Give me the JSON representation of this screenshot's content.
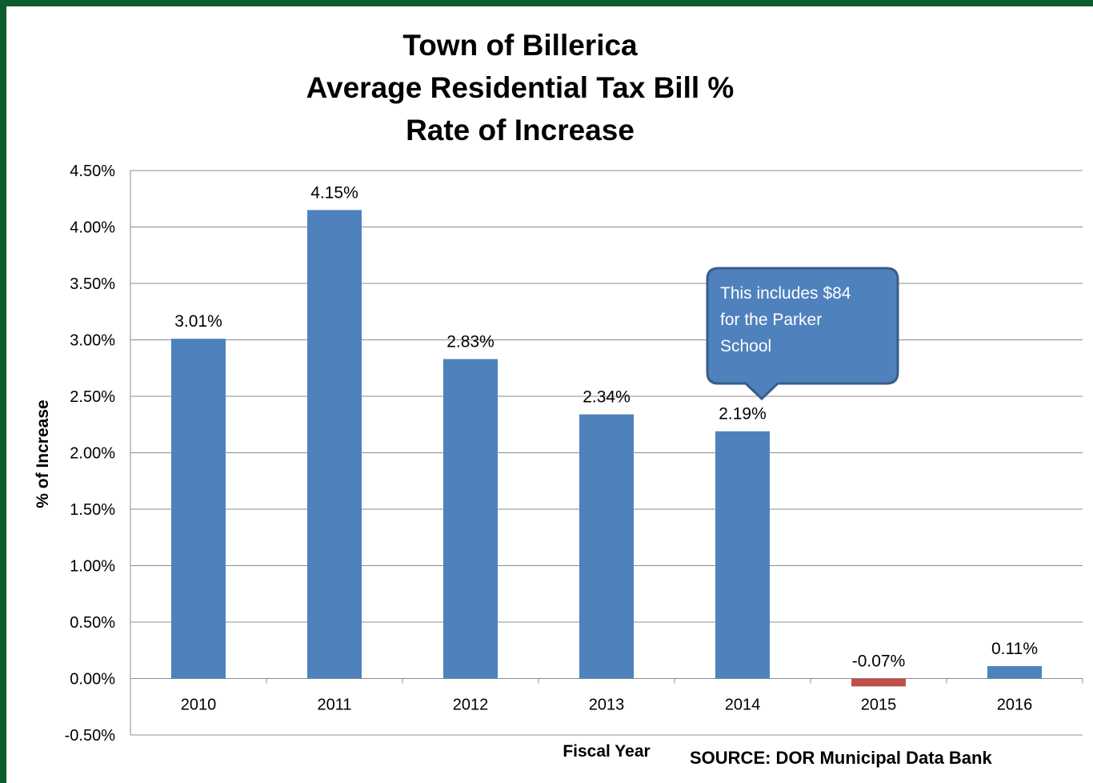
{
  "colors": {
    "bar_positive": "#4f81bd",
    "bar_negative": "#c0504d",
    "callout_fill": "#4f81bd",
    "callout_border": "#385d8a",
    "gridline": "#8c8c8c",
    "frame": "#0d5a2e"
  },
  "chart_data": {
    "type": "bar",
    "title_lines": [
      "Town of Billerica",
      "Average Residential Tax Bill %",
      "Rate of Increase"
    ],
    "xlabel": "Fiscal Year",
    "ylabel": "% of Increase",
    "categories": [
      "2010",
      "2011",
      "2012",
      "2013",
      "2014",
      "2015",
      "2016"
    ],
    "values": [
      3.01,
      4.15,
      2.83,
      2.34,
      2.19,
      -0.07,
      0.11
    ],
    "value_labels": [
      "3.01%",
      "4.15%",
      "2.83%",
      "2.34%",
      "2.19%",
      "-0.07%",
      "0.11%"
    ],
    "ylim": [
      -0.5,
      4.5
    ],
    "yticks": [
      4.5,
      4.0,
      3.5,
      3.0,
      2.5,
      2.0,
      1.5,
      1.0,
      0.5,
      0.0,
      -0.5
    ],
    "ytick_labels": [
      "4.50%",
      "4.00%",
      "3.50%",
      "3.00%",
      "2.50%",
      "2.00%",
      "1.50%",
      "1.00%",
      "0.50%",
      "0.00%",
      "-0.50%"
    ],
    "grid": true,
    "legend": "none",
    "annotation": {
      "target_category": "2014",
      "lines": [
        "This includes $84",
        "for the Parker",
        "School"
      ]
    }
  },
  "source_note": "SOURCE: DOR Municipal Data Bank"
}
